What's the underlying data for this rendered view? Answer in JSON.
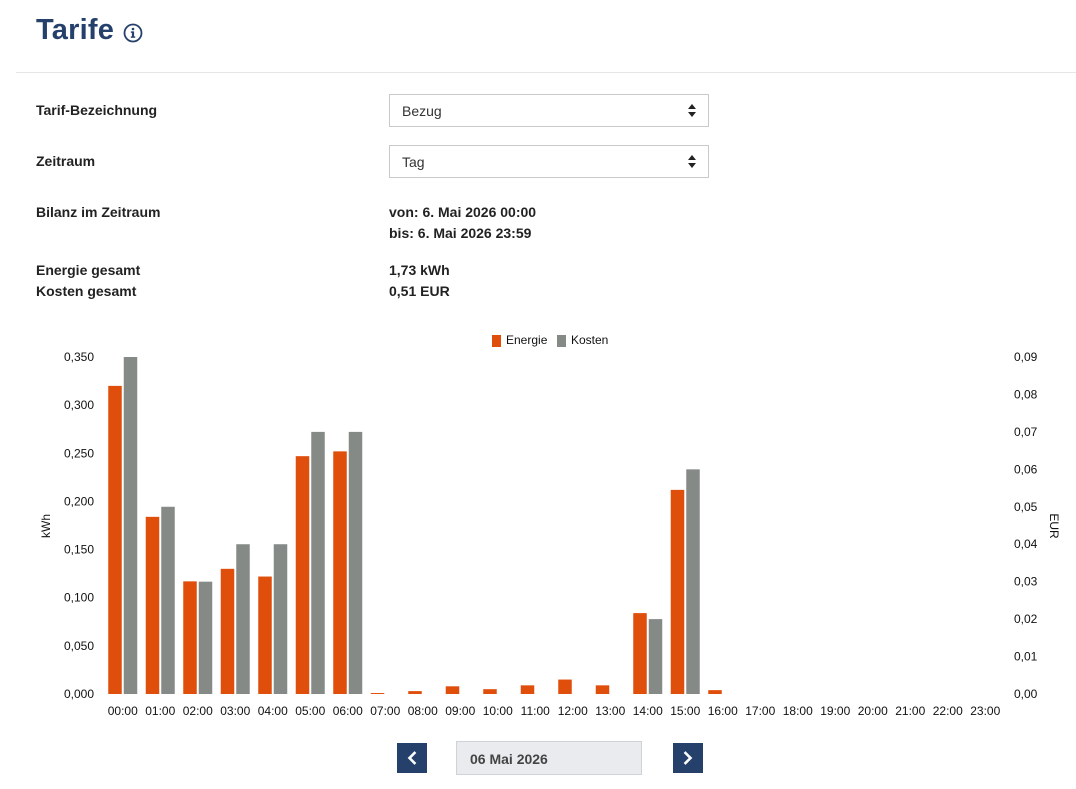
{
  "header": {
    "title": "Tarife",
    "info_icon": "info-circle-icon"
  },
  "form": {
    "tariff": {
      "label": "Tarif-Bezeichnung",
      "value": "Bezug"
    },
    "period": {
      "label": "Zeitraum",
      "value": "Tag"
    },
    "balance": {
      "label": "Bilanz im Zeitraum",
      "from": "von: 6. Mai 2026 00:00",
      "to": "bis: 6. Mai 2026 23:59"
    },
    "energy_total": {
      "label": "Energie gesamt",
      "value": "1,73 kWh"
    },
    "cost_total": {
      "label": "Kosten gesamt",
      "value": "0,51 EUR"
    }
  },
  "chart_data": {
    "type": "bar",
    "title": "",
    "categories": [
      "00:00",
      "01:00",
      "02:00",
      "03:00",
      "04:00",
      "05:00",
      "06:00",
      "07:00",
      "08:00",
      "09:00",
      "10:00",
      "11:00",
      "12:00",
      "13:00",
      "14:00",
      "15:00",
      "16:00",
      "17:00",
      "18:00",
      "19:00",
      "20:00",
      "21:00",
      "22:00",
      "23:00"
    ],
    "series": [
      {
        "name": "Energie",
        "color": "#e04e0c",
        "axis": "left",
        "values": [
          0.32,
          0.184,
          0.117,
          0.13,
          0.122,
          0.247,
          0.252,
          0.001,
          0.003,
          0.008,
          0.005,
          0.009,
          0.015,
          0.009,
          0.084,
          0.212,
          0.004,
          0,
          0,
          0,
          0,
          0,
          0,
          0
        ]
      },
      {
        "name": "Kosten",
        "color": "#868a87",
        "axis": "right",
        "values": [
          0.09,
          0.05,
          0.03,
          0.04,
          0.04,
          0.07,
          0.07,
          0,
          0,
          0,
          0,
          0,
          0,
          0,
          0.02,
          0.06,
          0,
          0,
          0,
          0,
          0,
          0,
          0,
          0
        ]
      }
    ],
    "ylabel": "kWh",
    "ylim": [
      0,
      0.35
    ],
    "yticks": [
      "0,000",
      "0,050",
      "0,100",
      "0,150",
      "0,200",
      "0,250",
      "0,300",
      "0,350"
    ],
    "y2label": "EUR",
    "y2lim": [
      0,
      0.09
    ],
    "y2ticks": [
      "0,00",
      "0,01",
      "0,02",
      "0,03",
      "0,04",
      "0,05",
      "0,06",
      "0,07",
      "0,08",
      "0,09"
    ],
    "legend": "top-center",
    "grid": false
  },
  "date_nav": {
    "prev_icon": "chevron-left-icon",
    "next_icon": "chevron-right-icon",
    "date": "06 Mai 2026"
  }
}
